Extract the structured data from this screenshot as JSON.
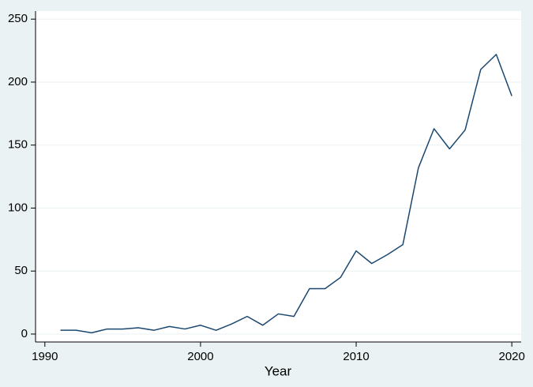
{
  "chart_data": {
    "type": "line",
    "x_label": "Year",
    "x": [
      1991,
      1992,
      1993,
      1994,
      1995,
      1996,
      1997,
      1998,
      1999,
      2000,
      2001,
      2002,
      2003,
      2004,
      2005,
      2006,
      2007,
      2008,
      2009,
      2010,
      2011,
      2012,
      2013,
      2014,
      2015,
      2016,
      2017,
      2018,
      2019,
      2020
    ],
    "values": [
      3,
      3,
      1,
      4,
      4,
      5,
      3,
      6,
      4,
      7,
      3,
      8,
      14,
      7,
      16,
      14,
      36,
      36,
      45,
      66,
      56,
      63,
      71,
      132,
      163,
      147,
      162,
      210,
      222,
      189
    ],
    "color": "#1a476f",
    "xlim": [
      1989.4,
      2020.6
    ],
    "xticks": [
      1990,
      2000,
      2010,
      2020
    ],
    "ylim": [
      -6.3,
      256.4
    ],
    "yticks": [
      0,
      50,
      100,
      150,
      200,
      250
    ],
    "grid": true
  }
}
